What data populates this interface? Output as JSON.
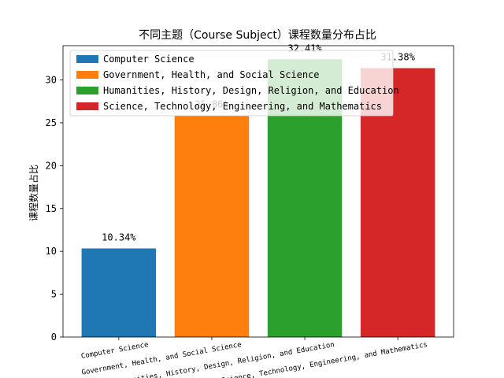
{
  "chart_data": {
    "type": "bar",
    "title": "不同主题（Course Subject）课程数量分布占比",
    "xlabel": "",
    "ylabel": "课程数量占比",
    "ylim": [
      0,
      34
    ],
    "yticks": [
      0,
      5,
      10,
      15,
      20,
      25,
      30
    ],
    "grid": false,
    "legend_position": "top-left",
    "categories": [
      "Computer Science",
      "Government, Health, and Social Science",
      "Humanities, History, Design, Religion, and Education",
      "Science, Technology, Engineering, and Mathematics"
    ],
    "values": [
      10.34,
      25.86,
      32.41,
      31.38
    ],
    "value_labels": [
      "10.34%",
      "25.86%",
      "32.41%",
      "31.38%"
    ],
    "colors": [
      "#1f77b4",
      "#ff7f0e",
      "#2ca02c",
      "#d62728"
    ],
    "legend": [
      "Computer Science",
      "Government, Health, and Social Science",
      "Humanities, History, Design, Religion, and Education",
      "Science, Technology, Engineering, and Mathematics"
    ]
  }
}
